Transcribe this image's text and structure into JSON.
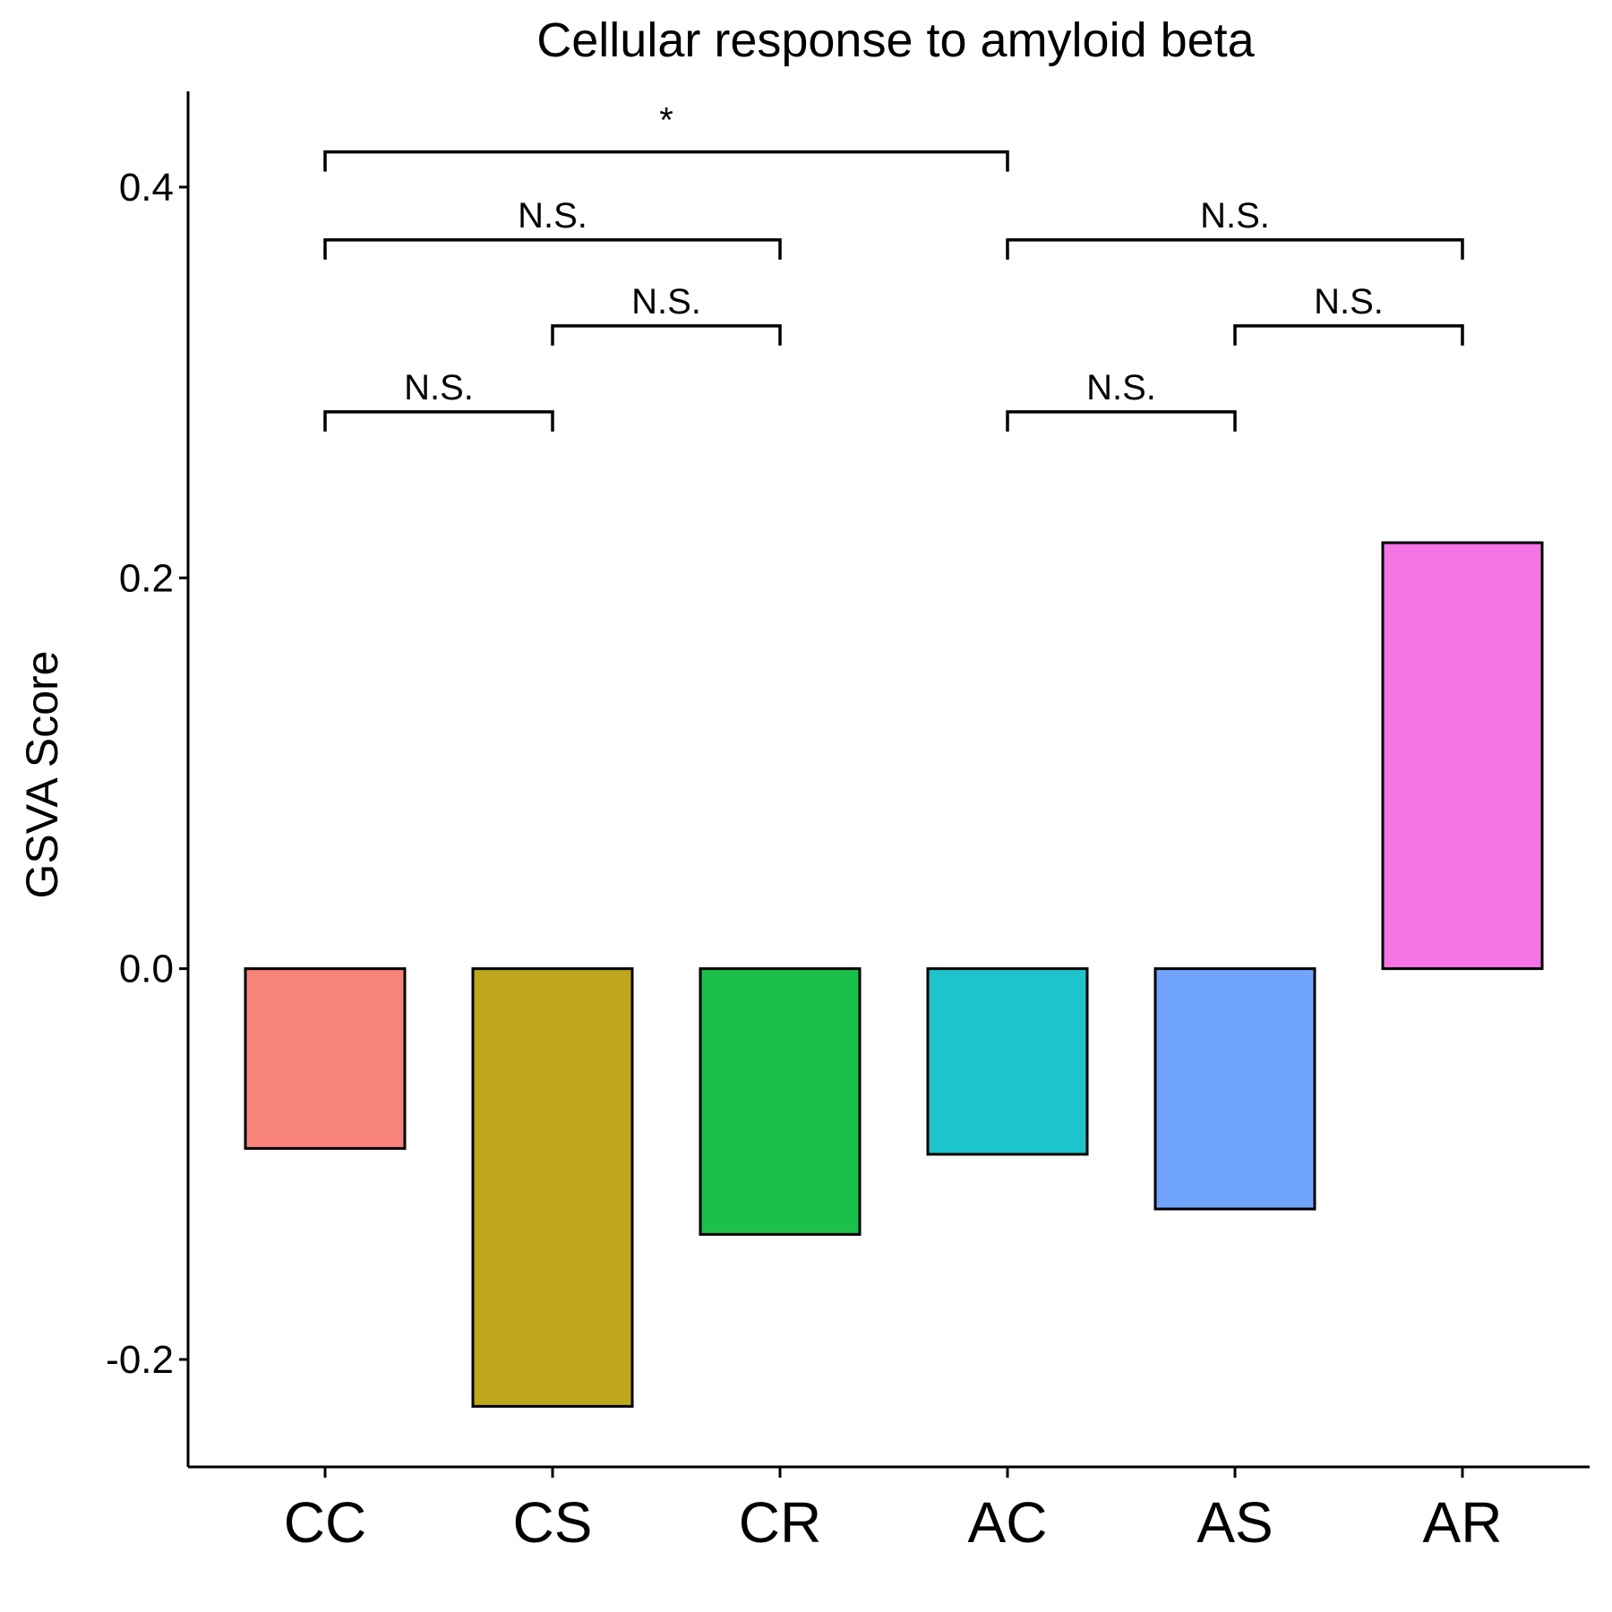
{
  "chart_data": {
    "type": "bar",
    "title": "Cellular response to amyloid beta",
    "xlabel": "",
    "ylabel": "GSVA Score",
    "categories": [
      "CC",
      "CS",
      "CR",
      "AC",
      "AS",
      "AR"
    ],
    "values": [
      -0.092,
      -0.224,
      -0.136,
      -0.095,
      -0.123,
      0.218
    ],
    "colors": [
      "#F8837B",
      "#BEA71A",
      "#1BC04A",
      "#1DC4CC",
      "#71A5FC",
      "#F475E3"
    ],
    "ylim": [
      -0.255,
      0.449
    ],
    "yticks": [
      -0.2,
      0.0,
      0.2,
      0.4
    ],
    "ytick_labels": [
      "-0.2",
      "0.0",
      "0.2",
      "0.4"
    ],
    "grid": false,
    "legend": "none",
    "significance": [
      {
        "from": "CC",
        "to": "CS",
        "label": "N.S.",
        "y": 0.285
      },
      {
        "from": "CS",
        "to": "CR",
        "label": "N.S.",
        "y": 0.329
      },
      {
        "from": "CC",
        "to": "CR",
        "label": "N.S.",
        "y": 0.373
      },
      {
        "from": "CC",
        "to": "AC",
        "label": "*",
        "y": 0.418
      },
      {
        "from": "AC",
        "to": "AS",
        "label": "N.S.",
        "y": 0.285
      },
      {
        "from": "AS",
        "to": "AR",
        "label": "N.S.",
        "y": 0.329
      },
      {
        "from": "AC",
        "to": "AR",
        "label": "N.S.",
        "y": 0.373
      }
    ]
  }
}
